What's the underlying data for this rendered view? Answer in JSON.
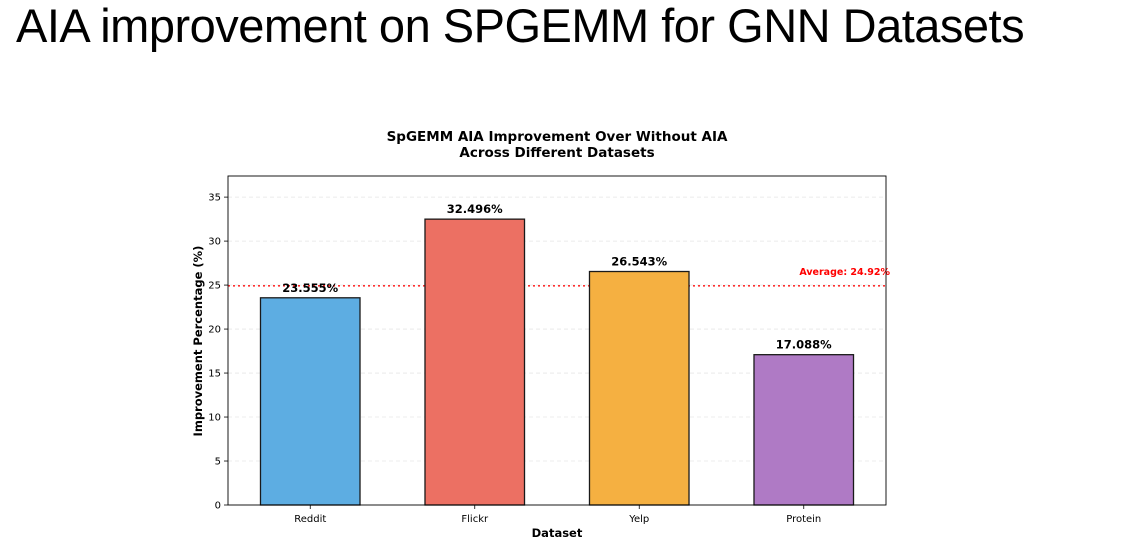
{
  "slide": {
    "title": "AIA improvement on SPGEMM for GNN Datasets"
  },
  "chart_data": {
    "type": "bar",
    "title_lines": [
      "SpGEMM AIA Improvement Over Without AIA",
      "Across Different Datasets"
    ],
    "xlabel": "Dataset",
    "ylabel": "Improvement Percentage (%)",
    "categories": [
      "Reddit",
      "Flickr",
      "Yelp",
      "Protein"
    ],
    "values": [
      23.555,
      32.496,
      26.543,
      17.088
    ],
    "value_labels": [
      "23.555%",
      "32.496%",
      "26.543%",
      "17.088%"
    ],
    "colors": [
      "#5dade2",
      "#ec7063",
      "#f5b041",
      "#af7ac5"
    ],
    "ylim": [
      0,
      37.4
    ],
    "yticks": [
      0,
      5,
      10,
      15,
      20,
      25,
      30,
      35
    ],
    "grid": true,
    "reference_line": {
      "value": 24.92,
      "label": "Average: 24.92%",
      "color": "#ff0000"
    }
  }
}
